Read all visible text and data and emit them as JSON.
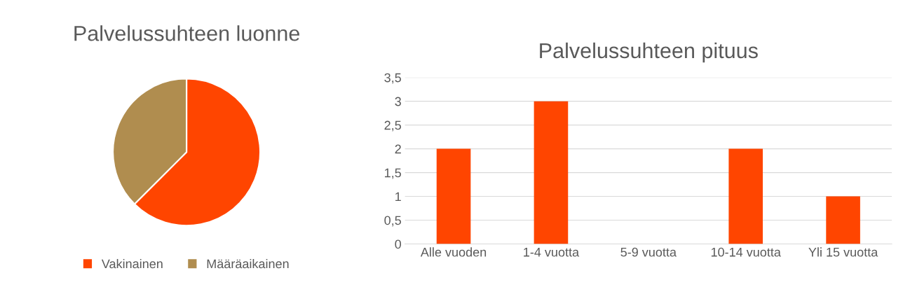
{
  "chart_data": [
    {
      "type": "pie",
      "title": "Palvelussuhteen luonne",
      "categories": [
        "Vakinainen",
        "Määräaikainen"
      ],
      "values": [
        62.5,
        37.5
      ],
      "colors": [
        "#ff4500",
        "#b08d4f"
      ],
      "legend": "bottom"
    },
    {
      "type": "bar",
      "title": "Palvelussuhteen pituus",
      "categories": [
        "Alle vuoden",
        "1-4 vuotta",
        "5-9 vuotta",
        "10-14 vuotta",
        "Yli 15 vuotta"
      ],
      "values": [
        2,
        3,
        0,
        2,
        1
      ],
      "color": "#ff4500",
      "ylim": [
        0,
        3.5
      ],
      "yticks": [
        0,
        {
          "value": 0.5,
          "label": "0,5"
        },
        1,
        {
          "value": 1.5,
          "label": "1,5"
        },
        2,
        {
          "value": 2.5,
          "label": "2,5"
        },
        3,
        {
          "value": 3.5,
          "label": "3,5"
        }
      ],
      "grid": "y"
    }
  ]
}
